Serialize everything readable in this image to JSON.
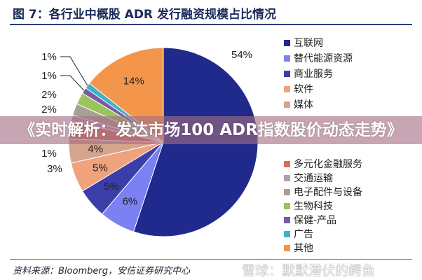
{
  "title": "图 7：各行业中概股 ADR 发行融资规模占比情况",
  "banner": "《实时解析：发达市场100 ADR指数股价动态走势》",
  "source": "资料来源：Bloomberg，安信证券研究中心",
  "watermark": "雪球：默默潜伏的鳄鱼",
  "chart_data": {
    "type": "pie",
    "title": "图 7：各行业中概股 ADR 发行融资规模占比情况",
    "legend_position": "right",
    "categories": [
      "互联网",
      "替代能源资源",
      "商业服务",
      "软件",
      "媒体",
      "多元化金融服务",
      "交通运输",
      "电子配件与设备",
      "生物科技",
      "保健-产品",
      "广告",
      "其他"
    ],
    "values": [
      54,
      6,
      5,
      5,
      4,
      3,
      1,
      2,
      2,
      1,
      1,
      14
    ],
    "labels": [
      "54%",
      "6%",
      "5%",
      "5%",
      "4%",
      "3%",
      "1%",
      "2%",
      "2%",
      "1%",
      "1%",
      "14%"
    ],
    "colors": [
      "#1f2a8c",
      "#7b80f2",
      "#3b3ea8",
      "#f0a27c",
      "#d6a48c",
      "#d2705c",
      "#b49cb0",
      "#a8a090",
      "#9cc45c",
      "#7a5aa2",
      "#3fb2c8",
      "#f3964c"
    ]
  }
}
